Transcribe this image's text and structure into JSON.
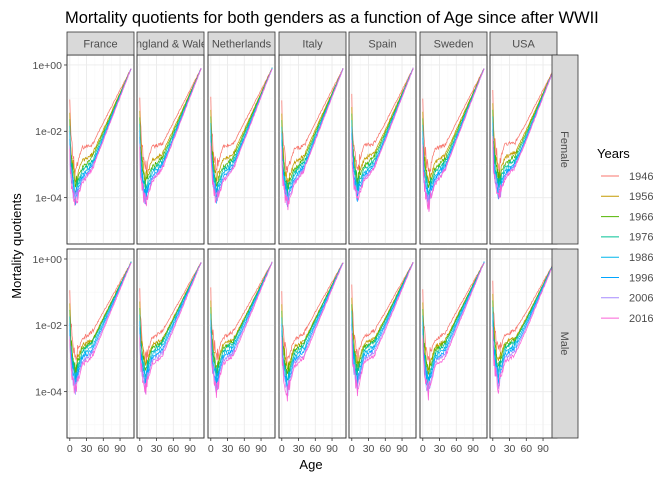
{
  "chart_data": {
    "type": "line",
    "title": "Mortality quotients for both genders as a function of Age since after WWII",
    "xlabel": "Age",
    "ylabel": "Mortality quotients",
    "x_tick_labels": [
      "0",
      "30",
      "60",
      "90"
    ],
    "x_ticks": [
      0,
      30,
      60,
      90
    ],
    "xlim": [
      -5,
      115
    ],
    "y_scale": "log10",
    "y_tick_labels": [
      "1e-04",
      "1e-02",
      "1e+00"
    ],
    "y_ticks": [
      0.0001,
      0.01,
      1
    ],
    "ylim": [
      4e-06,
      2
    ],
    "grid": true,
    "legend_position": "right",
    "legend_title": "Years",
    "columns": [
      "France",
      "England & Wales",
      "Netherlands",
      "Italy",
      "Spain",
      "Sweden",
      "USA"
    ],
    "rows": [
      "Female",
      "Male"
    ],
    "series": [
      {
        "name": "1946",
        "color": "#F8766D"
      },
      {
        "name": "1956",
        "color": "#C49A00"
      },
      {
        "name": "1966",
        "color": "#53B400"
      },
      {
        "name": "1976",
        "color": "#00C094"
      },
      {
        "name": "1986",
        "color": "#00B6EB"
      },
      {
        "name": "1996",
        "color": "#00A5FF"
      },
      {
        "name": "2006",
        "color": "#A58AFF"
      },
      {
        "name": "2016",
        "color": "#FB61D7"
      }
    ],
    "curve_model": {
      "description": "approximate log10 mortality quotient by age for each year",
      "infant_log10_q_female": [
        -1.1,
        -1.5,
        -1.7,
        -1.9,
        -2.1,
        -2.3,
        -2.5,
        -2.6
      ],
      "infant_log10_q_male": [
        -1.0,
        -1.4,
        -1.6,
        -1.8,
        -2.0,
        -2.2,
        -2.4,
        -2.5
      ],
      "min_log10_q_female": [
        -3.2,
        -3.5,
        -3.6,
        -3.75,
        -3.9,
        -4.0,
        -4.1,
        -4.2
      ],
      "min_log10_q_male": [
        -3.0,
        -3.3,
        -3.4,
        -3.55,
        -3.7,
        -3.8,
        -3.9,
        -4.0
      ],
      "young_adult_log10_q_female": [
        -2.5,
        -2.9,
        -3.1,
        -3.2,
        -3.3,
        -3.4,
        -3.5,
        -3.55
      ],
      "young_adult_log10_q_male": [
        -2.4,
        -2.6,
        -2.7,
        -2.8,
        -2.9,
        -3.0,
        -3.1,
        -3.2
      ],
      "log10_q_at_age_40_female": [
        -2.4,
        -2.7,
        -2.8,
        -2.9,
        -3.0,
        -3.05,
        -3.1,
        -3.15
      ],
      "log10_q_at_age_40_male": [
        -2.2,
        -2.45,
        -2.5,
        -2.55,
        -2.65,
        -2.75,
        -2.85,
        -2.95
      ],
      "log10_q_at_age_110": -0.1
    }
  }
}
